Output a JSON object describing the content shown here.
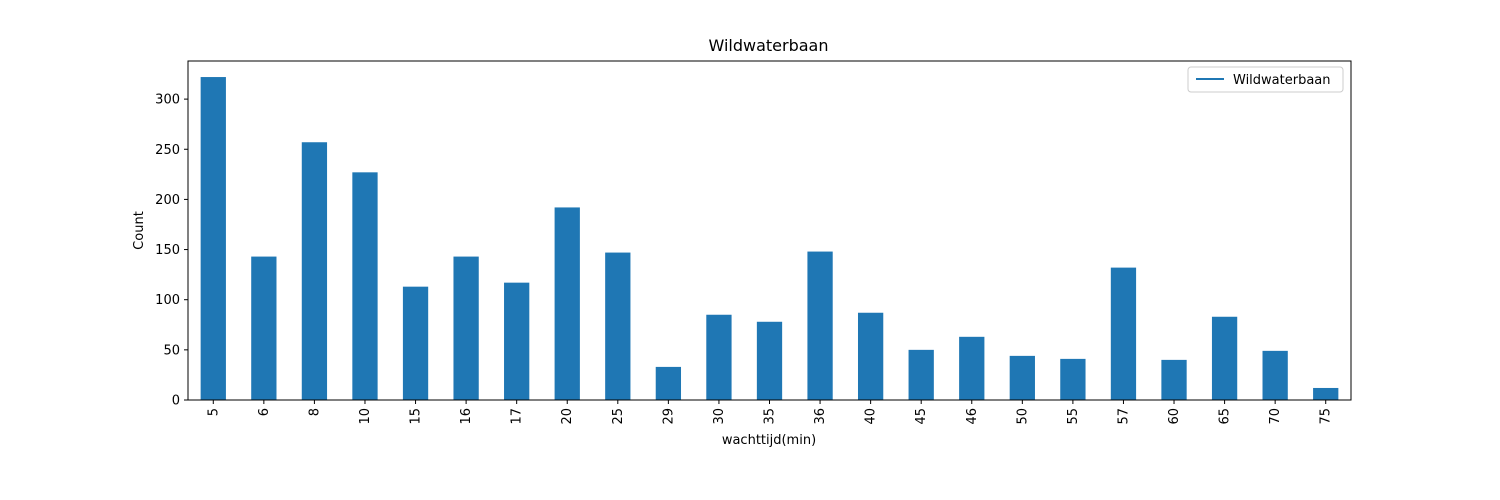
{
  "chart_data": {
    "type": "bar",
    "title": "Wildwaterbaan",
    "xlabel": "wachttijd(min)",
    "ylabel": "Count",
    "categories": [
      "5",
      "6",
      "8",
      "10",
      "15",
      "16",
      "17",
      "20",
      "25",
      "29",
      "30",
      "35",
      "36",
      "40",
      "45",
      "46",
      "50",
      "55",
      "57",
      "60",
      "65",
      "70",
      "75"
    ],
    "series": [
      {
        "name": "Wildwaterbaan",
        "values": [
          322,
          143,
          257,
          227,
          113,
          143,
          117,
          192,
          147,
          33,
          85,
          78,
          148,
          87,
          50,
          63,
          44,
          41,
          132,
          40,
          83,
          49,
          12
        ]
      }
    ],
    "ylim": [
      0,
      338
    ],
    "yticks": [
      0,
      50,
      100,
      150,
      200,
      250,
      300
    ],
    "grid": false,
    "legend": "top-right",
    "color": "#1f77b4"
  }
}
